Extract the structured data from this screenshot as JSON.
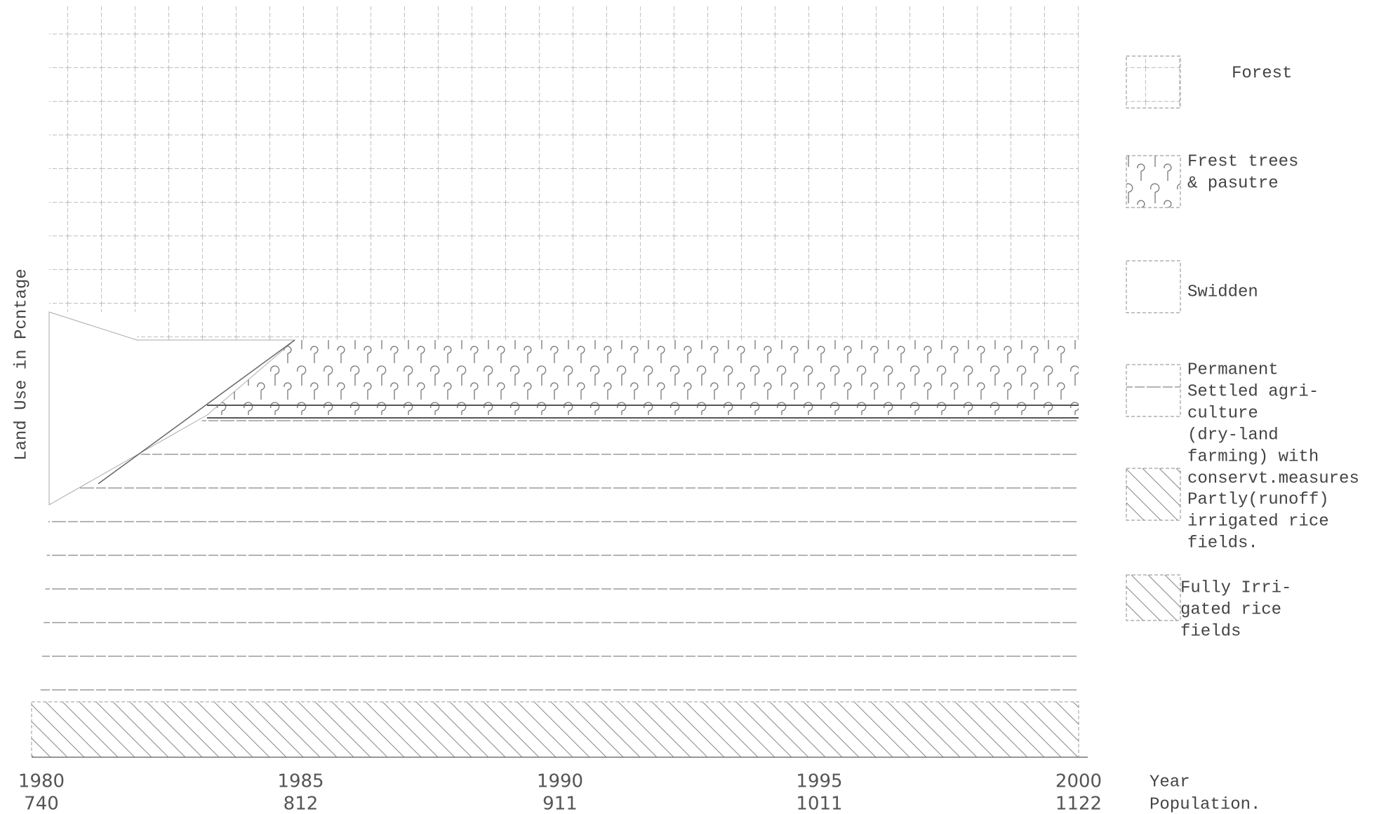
{
  "chart_data": {
    "type": "area",
    "y_label": "Land Use in Pcntage",
    "x_label": "Year",
    "population_label": "Population.",
    "categories": [
      "1980",
      "1985",
      "1990",
      "1995",
      "2000"
    ],
    "population": [
      740,
      812,
      911,
      1011,
      1122
    ],
    "legend": [
      {
        "lines": [
          "Forest"
        ]
      },
      {
        "lines": [
          "Frest trees",
          "& pasutre"
        ]
      },
      {
        "lines": [
          "Swidden"
        ]
      },
      {
        "lines": [
          "Permanent",
          "Settled agri-",
          "culture",
          "(dry-land",
          "farming) with",
          "conservt.measures"
        ]
      },
      {
        "lines": [
          "Partly(runoff)",
          "irrigated rice",
          "fields."
        ]
      },
      {
        "lines": [
          "Fully Irri-",
          "gated rice",
          "fields"
        ]
      }
    ]
  }
}
